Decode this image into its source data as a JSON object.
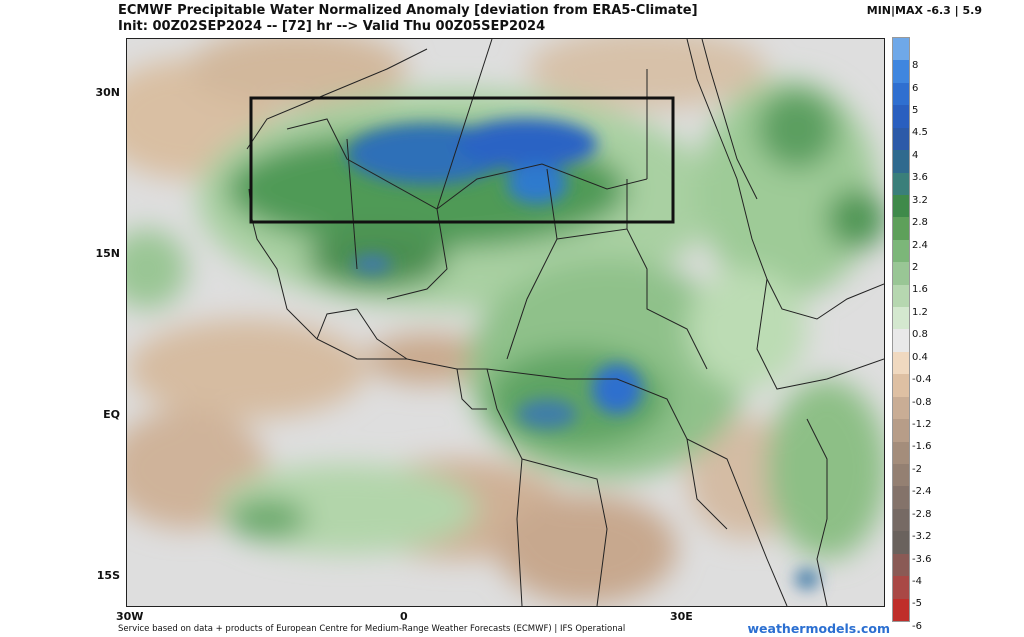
{
  "header": {
    "title_line1": "ECMWF Precipitable Water Normalized Anomaly [deviation from ERA5-Climate]",
    "title_line2": "Init: 00Z02SEP2024 -- [72] hr --> Valid Thu 00Z05SEP2024",
    "minmax": "MIN|MAX  -6.3 | 5.9"
  },
  "map": {
    "lat_labels": [
      "30N",
      "15N",
      "EQ",
      "15S"
    ],
    "lon_labels": [
      "30W",
      "0",
      "30E"
    ],
    "highlight_box": "region outline over Sahel/North Africa"
  },
  "colorbar": {
    "labels": [
      "8",
      "6",
      "5",
      "4.5",
      "4",
      "3.6",
      "3.2",
      "2.8",
      "2.4",
      "2",
      "1.6",
      "1.2",
      "0.8",
      "0.4",
      "-0.4",
      "-0.8",
      "-1.2",
      "-1.6",
      "-2",
      "-2.4",
      "-2.8",
      "-3.2",
      "-3.6",
      "-4",
      "-5",
      "-6"
    ],
    "colors": [
      "#6fa8e8",
      "#3f86df",
      "#2f6fd0",
      "#2a5fbf",
      "#2c5aa8",
      "#2f6a8e",
      "#3a7f7a",
      "#3f8a4a",
      "#5ea05a",
      "#7cb679",
      "#99c695",
      "#b6d7b0",
      "#d4e8cf",
      "#e9e9e9",
      "#f0d9c0",
      "#dec0a3",
      "#c9ad95",
      "#b79d88",
      "#a48d7b",
      "#948072",
      "#84736a",
      "#766a64",
      "#6a625d",
      "#8a5a55",
      "#a94845",
      "#bf2e2a"
    ]
  },
  "footer": {
    "credit": "Service based on data + products of European Centre for Medium-Range Weather Forecasts (ECMWF) | IFS Operational",
    "brand": "weathermodels.com"
  }
}
